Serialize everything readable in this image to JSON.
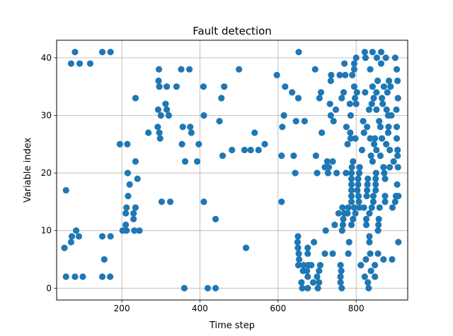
{
  "chart_data": {
    "type": "scatter",
    "title": "Fault detection",
    "xlabel": "Time step",
    "ylabel": "Variable index",
    "xlim": [
      33,
      932
    ],
    "ylim": [
      -2.05,
      43.05
    ],
    "xticks": [
      200,
      400,
      600,
      800
    ],
    "yticks": [
      0,
      10,
      20,
      30,
      40
    ],
    "grid": true,
    "marker_color": "#1f77b4",
    "series": [
      {
        "points": [
          [
            57,
            17
          ],
          [
            53,
            7
          ],
          [
            57,
            2
          ],
          [
            70,
            39
          ],
          [
            70,
            8
          ],
          [
            72,
            9
          ],
          [
            80,
            41
          ],
          [
            83,
            10
          ],
          [
            80,
            2
          ],
          [
            92,
            39
          ],
          [
            90,
            9
          ],
          [
            100,
            2
          ],
          [
            119,
            39
          ],
          [
            150,
            41
          ],
          [
            150,
            9
          ],
          [
            155,
            5
          ],
          [
            150,
            2
          ],
          [
            171,
            41
          ],
          [
            171,
            9
          ],
          [
            170,
            2
          ],
          [
            195,
            25
          ],
          [
            202,
            10
          ],
          [
            210,
            11
          ],
          [
            210,
            13
          ],
          [
            212,
            14
          ],
          [
            215,
            20
          ],
          [
            214,
            25
          ],
          [
            216,
            16
          ],
          [
            212,
            10
          ],
          [
            220,
            18
          ],
          [
            230,
            12
          ],
          [
            232,
            10
          ],
          [
            230,
            13
          ],
          [
            235,
            22
          ],
          [
            235,
            14
          ],
          [
            240,
            19
          ],
          [
            245,
            10
          ],
          [
            235,
            33
          ],
          [
            268,
            27
          ],
          [
            292,
            28
          ],
          [
            295,
            38
          ],
          [
            294,
            36
          ],
          [
            296,
            35
          ],
          [
            293,
            31
          ],
          [
            296,
            27
          ],
          [
            298,
            26
          ],
          [
            300,
            30
          ],
          [
            302,
            15
          ],
          [
            312,
            32
          ],
          [
            315,
            35
          ],
          [
            315,
            31
          ],
          [
            320,
            30
          ],
          [
            324,
            15
          ],
          [
            340,
            35
          ],
          [
            352,
            38
          ],
          [
            354,
            25
          ],
          [
            356,
            28
          ],
          [
            360,
            0
          ],
          [
            362,
            22
          ],
          [
            373,
            38
          ],
          [
            375,
            28
          ],
          [
            378,
            27
          ],
          [
            393,
            22
          ],
          [
            397,
            25
          ],
          [
            409,
            35
          ],
          [
            410,
            30
          ],
          [
            410,
            15
          ],
          [
            420,
            0
          ],
          [
            440,
            0
          ],
          [
            440,
            12
          ],
          [
            450,
            29
          ],
          [
            455,
            33
          ],
          [
            458,
            23
          ],
          [
            462,
            35
          ],
          [
            482,
            24
          ],
          [
            500,
            38
          ],
          [
            514,
            24
          ],
          [
            518,
            7
          ],
          [
            530,
            24
          ],
          [
            540,
            27
          ],
          [
            550,
            24
          ],
          [
            566,
            25
          ],
          [
            597,
            37
          ],
          [
            609,
            15
          ],
          [
            609,
            23
          ],
          [
            611,
            28
          ],
          [
            615,
            30
          ],
          [
            618,
            35
          ],
          [
            636,
            34
          ],
          [
            640,
            23
          ],
          [
            644,
            20
          ],
          [
            646,
            29
          ],
          [
            651,
            9
          ],
          [
            652,
            33
          ],
          [
            653,
            41
          ],
          [
            650,
            8
          ],
          [
            651,
            7
          ],
          [
            653,
            6
          ],
          [
            654,
            5
          ],
          [
            652,
            4
          ],
          [
            660,
            1
          ],
          [
            662,
            0
          ],
          [
            664,
            3
          ],
          [
            665,
            4
          ],
          [
            668,
            29
          ],
          [
            676,
            0
          ],
          [
            676,
            2
          ],
          [
            674,
            3
          ],
          [
            677,
            4
          ],
          [
            676,
            6
          ],
          [
            676,
            7
          ],
          [
            685,
            4
          ],
          [
            690,
            1
          ],
          [
            692,
            8
          ],
          [
            695,
            38
          ],
          [
            697,
            23
          ],
          [
            700,
            20
          ],
          [
            700,
            2
          ],
          [
            702,
            0
          ],
          [
            705,
            1
          ],
          [
            705,
            3
          ],
          [
            706,
            33
          ],
          [
            708,
            4
          ],
          [
            710,
            34
          ],
          [
            712,
            27
          ],
          [
            720,
            21
          ],
          [
            720,
            6
          ],
          [
            722,
            10
          ],
          [
            726,
            22
          ],
          [
            728,
            20
          ],
          [
            730,
            21
          ],
          [
            733,
            32
          ],
          [
            735,
            30
          ],
          [
            735,
            36
          ],
          [
            736,
            37
          ],
          [
            740,
            6
          ],
          [
            740,
            22
          ],
          [
            742,
            29
          ],
          [
            745,
            11
          ],
          [
            748,
            31
          ],
          [
            750,
            20
          ],
          [
            755,
            13
          ],
          [
            758,
            37
          ],
          [
            760,
            2
          ],
          [
            760,
            4
          ],
          [
            760,
            1
          ],
          [
            762,
            3
          ],
          [
            763,
            0
          ],
          [
            763,
            33
          ],
          [
            764,
            10
          ],
          [
            765,
            14
          ],
          [
            766,
            11
          ],
          [
            767,
            12
          ],
          [
            768,
            34
          ],
          [
            770,
            13
          ],
          [
            770,
            39
          ],
          [
            772,
            37
          ],
          [
            774,
            20
          ],
          [
            775,
            28
          ],
          [
            778,
            25
          ],
          [
            778,
            13
          ],
          [
            780,
            14
          ],
          [
            780,
            6
          ],
          [
            782,
            8
          ],
          [
            784,
            32
          ],
          [
            785,
            27
          ],
          [
            786,
            30
          ],
          [
            786,
            26
          ],
          [
            788,
            11
          ],
          [
            788,
            19
          ],
          [
            788,
            20
          ],
          [
            788,
            18
          ],
          [
            788,
            17
          ],
          [
            788,
            16
          ],
          [
            788,
            15
          ],
          [
            789,
            21
          ],
          [
            790,
            37
          ],
          [
            792,
            12
          ],
          [
            792,
            22
          ],
          [
            795,
            14
          ],
          [
            795,
            35
          ],
          [
            795,
            38
          ],
          [
            795,
            39
          ],
          [
            797,
            33
          ],
          [
            798,
            26
          ],
          [
            798,
            13
          ],
          [
            800,
            40
          ],
          [
            800,
            32
          ],
          [
            802,
            34
          ],
          [
            803,
            17
          ],
          [
            805,
            18
          ],
          [
            805,
            19
          ],
          [
            806,
            16
          ],
          [
            807,
            15
          ],
          [
            808,
            14
          ],
          [
            808,
            20
          ],
          [
            809,
            21
          ],
          [
            812,
            4
          ],
          [
            815,
            24
          ],
          [
            818,
            29
          ],
          [
            820,
            27
          ],
          [
            820,
            14
          ],
          [
            822,
            41
          ],
          [
            822,
            2
          ],
          [
            823,
            34
          ],
          [
            824,
            40
          ],
          [
            825,
            5
          ],
          [
            826,
            11
          ],
          [
            826,
            12
          ],
          [
            827,
            16
          ],
          [
            828,
            28
          ],
          [
            828,
            17
          ],
          [
            829,
            18
          ],
          [
            830,
            19
          ],
          [
            830,
            1
          ],
          [
            832,
            0
          ],
          [
            833,
            31
          ],
          [
            834,
            8
          ],
          [
            834,
            13
          ],
          [
            834,
            9
          ],
          [
            836,
            6
          ],
          [
            836,
            26
          ],
          [
            836,
            38
          ],
          [
            838,
            3
          ],
          [
            838,
            23
          ],
          [
            840,
            14
          ],
          [
            840,
            32
          ],
          [
            842,
            35
          ],
          [
            842,
            22
          ],
          [
            842,
            41
          ],
          [
            844,
            15
          ],
          [
            844,
            16
          ],
          [
            845,
            33
          ],
          [
            846,
            25
          ],
          [
            848,
            2
          ],
          [
            848,
            4
          ],
          [
            848,
            26
          ],
          [
            850,
            17
          ],
          [
            850,
            19
          ],
          [
            850,
            18
          ],
          [
            851,
            20
          ],
          [
            852,
            24
          ],
          [
            852,
            31
          ],
          [
            852,
            34
          ],
          [
            853,
            40
          ],
          [
            855,
            36
          ],
          [
            856,
            6
          ],
          [
            856,
            10
          ],
          [
            857,
            11
          ],
          [
            858,
            12
          ],
          [
            859,
            29
          ],
          [
            860,
            14
          ],
          [
            862,
            23
          ],
          [
            862,
            28
          ],
          [
            864,
            39
          ],
          [
            864,
            41
          ],
          [
            866,
            33
          ],
          [
            866,
            26
          ],
          [
            868,
            32
          ],
          [
            870,
            5
          ],
          [
            870,
            21
          ],
          [
            871,
            35
          ],
          [
            872,
            20
          ],
          [
            874,
            16
          ],
          [
            874,
            15
          ],
          [
            874,
            19
          ],
          [
            876,
            40
          ],
          [
            877,
            25
          ],
          [
            878,
            31
          ],
          [
            880,
            34
          ],
          [
            882,
            27
          ],
          [
            882,
            30
          ],
          [
            883,
            28
          ],
          [
            884,
            36
          ],
          [
            886,
            24
          ],
          [
            886,
            21
          ],
          [
            888,
            35
          ],
          [
            890,
            30
          ],
          [
            892,
            5
          ],
          [
            893,
            14
          ],
          [
            896,
            22
          ],
          [
            900,
            40
          ],
          [
            900,
            15
          ],
          [
            902,
            16
          ],
          [
            903,
            31
          ],
          [
            904,
            28
          ],
          [
            904,
            26
          ],
          [
            904,
            38
          ],
          [
            905,
            18
          ],
          [
            906,
            36
          ],
          [
            906,
            24
          ],
          [
            906,
            23
          ],
          [
            907,
            33
          ],
          [
            907,
            21
          ],
          [
            908,
            8
          ],
          [
            908,
            16
          ]
        ]
      }
    ]
  }
}
